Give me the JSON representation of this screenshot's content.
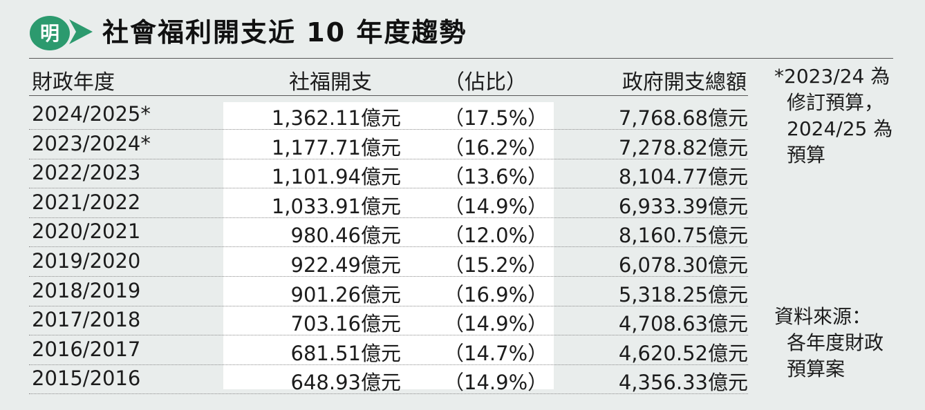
{
  "title": "社會福利開支近 10 年度趨勢",
  "logo_text": "明",
  "colors": {
    "logo_green": "#2c9a6e",
    "background": "#e9edec",
    "highlight": "#ffffff"
  },
  "headers": {
    "year": "財政年度",
    "welfare": "社福開支",
    "pct": "（佔比）",
    "total": "政府開支總額"
  },
  "note": [
    "*2023/24 為",
    "修訂預算，",
    "2024/25 為",
    "預算"
  ],
  "source": [
    "資料來源：",
    "各年度財政",
    "預算案"
  ],
  "chart_data": {
    "type": "table",
    "title": "社會福利開支近 10 年度趨勢",
    "columns": [
      "財政年度",
      "社福開支",
      "（佔比）",
      "政府開支總額"
    ],
    "rows": [
      {
        "year": "2024/2025*",
        "welfare": "1,362.11億元",
        "pct": "（17.5%）",
        "total": "7,768.68億元"
      },
      {
        "year": "2023/2024*",
        "welfare": "1,177.71億元",
        "pct": "（16.2%）",
        "total": "7,278.82億元"
      },
      {
        "year": "2022/2023",
        "welfare": "1,101.94億元",
        "pct": "（13.6%）",
        "total": "8,104.77億元"
      },
      {
        "year": "2021/2022",
        "welfare": "1,033.91億元",
        "pct": "（14.9%）",
        "total": "6,933.39億元"
      },
      {
        "year": "2020/2021",
        "welfare": "980.46億元",
        "pct": "（12.0%）",
        "total": "8,160.75億元"
      },
      {
        "year": "2019/2020",
        "welfare": "922.49億元",
        "pct": "（15.2%）",
        "total": "6,078.30億元"
      },
      {
        "year": "2018/2019",
        "welfare": "901.26億元",
        "pct": "（16.9%）",
        "total": "5,318.25億元"
      },
      {
        "year": "2017/2018",
        "welfare": "703.16億元",
        "pct": "（14.9%）",
        "total": "4,708.63億元"
      },
      {
        "year": "2016/2017",
        "welfare": "681.51億元",
        "pct": "（14.7%）",
        "total": "4,620.52億元"
      },
      {
        "year": "2015/2016",
        "welfare": "648.93億元",
        "pct": "（14.9%）",
        "total": "4,356.33億元"
      }
    ]
  }
}
